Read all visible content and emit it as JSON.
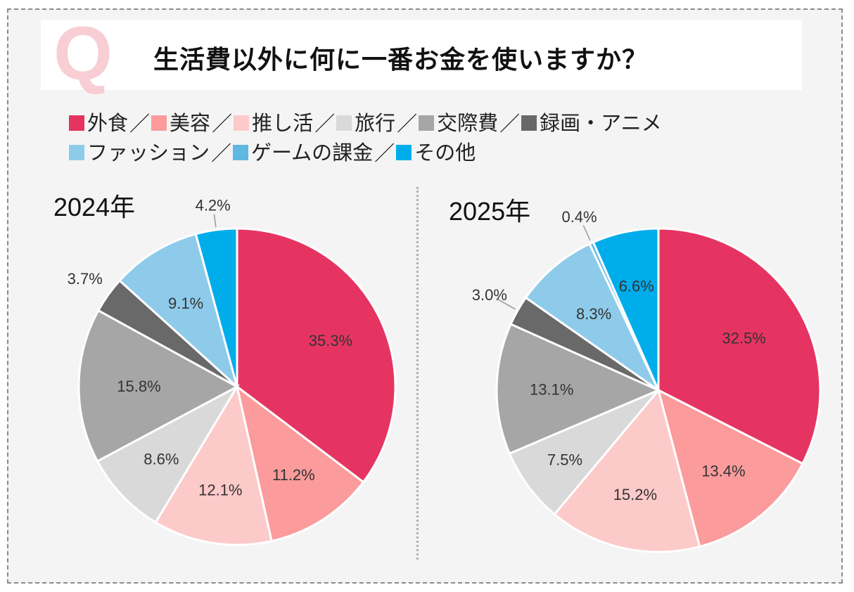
{
  "title": "生活費以外に何に一番お金を使いますか？",
  "q_mark": "Q",
  "legend_separator": "／",
  "chart_data": [
    {
      "type": "pie",
      "title": "2024年",
      "categories": [
        "外食",
        "美容",
        "推し活",
        "旅行",
        "交際費",
        "録画・アニメ",
        "ファッション",
        "ゲームの課金",
        "その他"
      ],
      "values": [
        35.3,
        11.2,
        12.1,
        8.6,
        15.8,
        3.7,
        9.1,
        0,
        4.2
      ],
      "labels": [
        "35.3%",
        "11.2%",
        "12.1%",
        "8.6%",
        "15.8%",
        "3.7%",
        "9.1%",
        "",
        "4.2%"
      ]
    },
    {
      "type": "pie",
      "title": "2025年",
      "categories": [
        "外食",
        "美容",
        "推し活",
        "旅行",
        "交際費",
        "録画・アニメ",
        "ファッション",
        "ゲームの課金",
        "その他"
      ],
      "values": [
        32.5,
        13.4,
        15.2,
        7.5,
        13.1,
        3.0,
        8.3,
        0.4,
        6.6
      ],
      "labels": [
        "32.5%",
        "13.4%",
        "15.2%",
        "7.5%",
        "13.1%",
        "3.0%",
        "8.3%",
        "0.4%",
        "6.6%"
      ]
    }
  ],
  "legend": {
    "rows": [
      [
        {
          "label": "外食",
          "color": "#e63462"
        },
        {
          "label": "美容",
          "color": "#fb9b9b"
        },
        {
          "label": "推し活",
          "color": "#fdcaca"
        },
        {
          "label": "旅行",
          "color": "#d9d9d9"
        },
        {
          "label": "交際費",
          "color": "#a6a6a6"
        },
        {
          "label": "録画・アニメ",
          "color": "#696969"
        }
      ],
      [
        {
          "label": "ファッション",
          "color": "#8ecbea"
        },
        {
          "label": "ゲームの課金",
          "color": "#5fb8e0"
        },
        {
          "label": "その他",
          "color": "#00adeb"
        }
      ]
    ]
  }
}
